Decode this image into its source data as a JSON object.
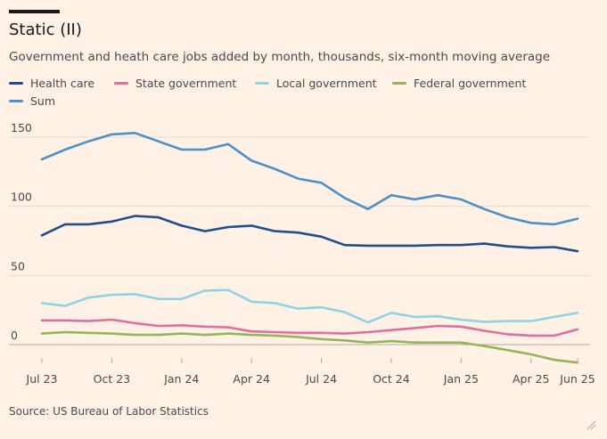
{
  "header": {
    "title": "Static (II)",
    "subtitle": "Government and heath care jobs added by month, thousands, six-month moving average"
  },
  "source": "Source: US Bureau of Labor Statistics",
  "chart_data": {
    "type": "line",
    "x": [
      "Jul 23",
      "Aug 23",
      "Sep 23",
      "Oct 23",
      "Nov 23",
      "Dec 23",
      "Jan 24",
      "Feb 24",
      "Mar 24",
      "Apr 24",
      "May 24",
      "Jun 24",
      "Jul 24",
      "Aug 24",
      "Sep 24",
      "Oct 24",
      "Nov 24",
      "Dec 24",
      "Jan 25",
      "Feb 25",
      "Mar 25",
      "Apr 25",
      "May 25",
      "Jun 25"
    ],
    "x_tick_labels": [
      "Jul 23",
      "Oct 23",
      "Jan 24",
      "Apr 24",
      "Jul 24",
      "Oct 24",
      "Jan 25",
      "Apr 25",
      "Jun 25"
    ],
    "y_ticks": [
      0,
      50,
      100,
      150
    ],
    "ylim": [
      -12,
      160
    ],
    "grid": true,
    "legend_position": "top",
    "series": [
      {
        "name": "Health care",
        "color": "#1f4e8c",
        "values": [
          79,
          87,
          87,
          89,
          93,
          92,
          86,
          82,
          85,
          86,
          82,
          81,
          78,
          72,
          71.5,
          71.5,
          71.5,
          72,
          72,
          73,
          71,
          70,
          70.5,
          67.5
        ]
      },
      {
        "name": "State government",
        "color": "#e0709a",
        "values": [
          17.5,
          17.5,
          17,
          18,
          15.5,
          13.5,
          14,
          13,
          12.5,
          9.5,
          9,
          8.5,
          8.5,
          8,
          9,
          10.5,
          12,
          13.5,
          13,
          10,
          7.5,
          6.5,
          6.5,
          11
        ]
      },
      {
        "name": "Local government",
        "color": "#8fd3e3",
        "values": [
          30,
          28,
          34,
          36,
          36.5,
          33,
          33,
          39,
          39.5,
          31,
          30,
          26,
          27,
          23.5,
          16,
          23,
          20,
          20.5,
          18,
          16.5,
          17,
          17,
          20,
          23
        ]
      },
      {
        "name": "Federal government",
        "color": "#96b45a",
        "values": [
          8,
          9,
          8.5,
          8,
          7,
          7,
          8,
          7,
          8,
          7,
          6.5,
          5.5,
          4,
          3,
          1.5,
          2.5,
          1.5,
          1.5,
          1.5,
          -1,
          -4,
          -7,
          -11,
          -13
        ]
      },
      {
        "name": "Sum",
        "color": "#4a91c9",
        "values": [
          134,
          141,
          147,
          152,
          153,
          147,
          141,
          141,
          145,
          133,
          127,
          120,
          117,
          106,
          98,
          108,
          105,
          108,
          105,
          98,
          92,
          88,
          87,
          91
        ]
      }
    ]
  }
}
